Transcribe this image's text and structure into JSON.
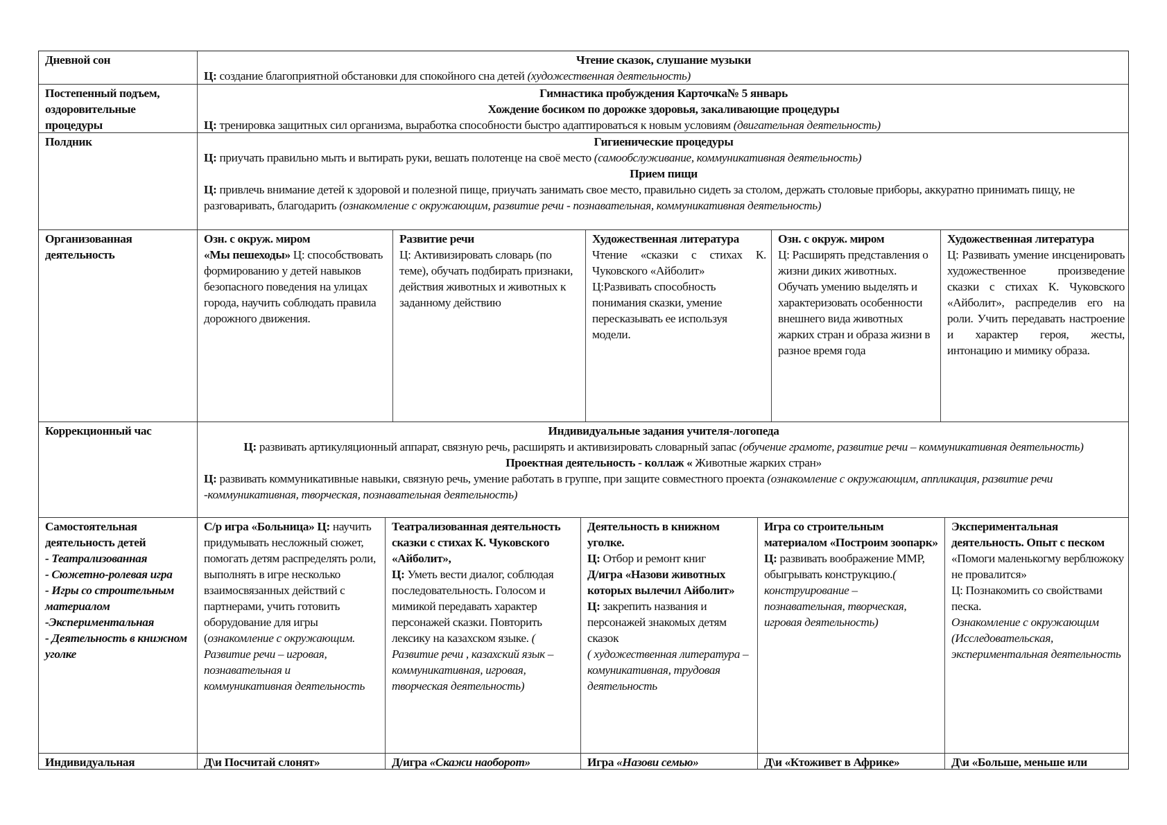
{
  "rows": [
    {
      "label": [
        [
          {
            "t": "Дневной сон",
            "s": "b"
          }
        ]
      ],
      "full": [
        {
          "align": "center",
          "segs": [
            {
              "t": "Чтение сказок, слушание музыки",
              "s": "b"
            }
          ]
        },
        {
          "align": "left",
          "segs": [
            {
              "t": "Ц:",
              "s": "b"
            },
            {
              "t": " создание благоприятной обстановки  для спокойного сна детей ",
              "s": ""
            },
            {
              "t": "(художественная  деятельность)",
              "s": "i"
            }
          ]
        }
      ]
    },
    {
      "label": [
        [
          {
            "t": "Постепенный подъем, оздоровительные процедуры",
            "s": "b"
          }
        ]
      ],
      "full": [
        {
          "align": "center",
          "segs": [
            {
              "t": "Гимнастика пробуждения Карточка№ 5 январь",
              "s": "b"
            }
          ]
        },
        {
          "align": "center",
          "segs": [
            {
              "t": "Хождение босиком по дорожке здоровья, закаливающие процедуры",
              "s": "b"
            }
          ]
        },
        {
          "align": "left",
          "segs": [
            {
              "t": "Ц:",
              "s": "b"
            },
            {
              "t": " тренировка защитных сил организма, выработка способности быстро адаптироваться к новым условиям ",
              "s": ""
            },
            {
              "t": "(двигательная деятельность)",
              "s": "i"
            }
          ]
        }
      ]
    },
    {
      "label": [
        [
          {
            "t": "Полдник",
            "s": "b"
          }
        ]
      ],
      "full": [
        {
          "align": "center",
          "segs": [
            {
              "t": "Гигиенические процедуры",
              "s": "b"
            }
          ]
        },
        {
          "align": "left",
          "segs": [
            {
              "t": "Ц:",
              "s": "b"
            },
            {
              "t": " приучать правильно мыть и вытирать руки, вешать полотенце на своё место ",
              "s": ""
            },
            {
              "t": "(самообслуживание, коммуникативная деятельность)",
              "s": "i"
            }
          ]
        },
        {
          "align": "center",
          "segs": [
            {
              "t": "Прием пищи",
              "s": "b"
            }
          ]
        },
        {
          "align": "left",
          "segs": [
            {
              "t": "Ц:",
              "s": "b"
            },
            {
              "t": " привлечь внимание детей к здоровой и полезной  пище, приучать занимать свое место, правильно сидеть за столом, держать столовые приборы, аккуратно принимать пищу, не разговаривать, благодарить ",
              "s": ""
            },
            {
              "t": "(ознакомление с окружающим, развитие речи - познавательная, коммуникативная деятельность)",
              "s": "i"
            }
          ]
        }
      ]
    },
    {
      "label": [
        [
          {
            "t": "Организованная деятельность",
            "s": "b"
          }
        ]
      ],
      "cells": [
        [
          {
            "align": "left",
            "segs": [
              {
                "t": "Озн. с окруж. миром",
                "s": "b"
              }
            ]
          },
          {
            "align": "left",
            "segs": [
              {
                "t": "«Мы пешеходы»",
                "s": "b"
              },
              {
                "t": " Ц: способствовать формированию у детей навыков безопасного поведения на улицах города, научить соблюдать правила дорожного движения.",
                "s": ""
              }
            ]
          }
        ],
        [
          {
            "align": "left",
            "segs": [
              {
                "t": "Развитие речи",
                "s": "b"
              }
            ]
          },
          {
            "align": "left",
            "segs": [
              {
                "t": "Ц: Активизировать словарь (по теме), обучать подбирать признаки, действия животных и животных к заданному действию",
                "s": ""
              }
            ]
          }
        ],
        [
          {
            "align": "left",
            "segs": [
              {
                "t": "Художественная литература",
                "s": "b"
              }
            ]
          },
          {
            "align": "justify",
            "segs": [
              {
                "t": "Чтение «сказки с стихах К. Чуковского «Айболит»",
                "s": ""
              }
            ]
          },
          {
            "align": "left",
            "segs": [
              {
                "t": "Ц:Развивать способность понимания сказки, умение пересказывать ее используя модели.",
                "s": ""
              }
            ]
          }
        ],
        [
          {
            "align": "left",
            "segs": [
              {
                "t": "Озн. с окруж. миром",
                "s": "b"
              }
            ]
          },
          {
            "align": "left",
            "segs": [
              {
                "t": "Ц: Расширять представления о жизни диких животных. Обучать умению выделять и характеризовать особенности внешнего вида животных жарких стран  и образа жизни в разное время года",
                "s": ""
              }
            ]
          }
        ],
        [
          {
            "align": "left",
            "segs": [
              {
                "t": "Художественная литература",
                "s": "b"
              }
            ]
          },
          {
            "align": "justify",
            "segs": [
              {
                "t": "Ц: Развивать умение инсценировать художественное произведение сказки с стихах К. Чуковского «Айболит», распределив его на роли. Учить передавать настроение и характер героя, жесты, интонацию и мимику образа.",
                "s": ""
              }
            ]
          }
        ]
      ]
    },
    {
      "label": [
        [
          {
            "t": "Коррекционный час",
            "s": "b"
          }
        ]
      ],
      "full": [
        {
          "align": "center",
          "segs": [
            {
              "t": "Индивидуальные задания учителя-логопеда",
              "s": "b"
            }
          ]
        },
        {
          "align": "center",
          "segs": [
            {
              "t": "Ц:",
              "s": "b"
            },
            {
              "t": " развивать артикуляционный аппарат, связную речь, расширять и активизировать словарный запас ",
              "s": ""
            },
            {
              "t": "(обучение грамоте, развитие речи – коммуникативная деятельность)",
              "s": "i"
            }
          ]
        },
        {
          "align": "center",
          "segs": [
            {
              "t": "Проектная деятельность - коллаж «",
              "s": "b"
            },
            {
              "t": " Животные жарких стран»",
              "s": ""
            }
          ]
        },
        {
          "align": "left",
          "segs": [
            {
              "t": "Ц:",
              "s": "b"
            },
            {
              "t": " развивать коммуникативные навыки, связную речь, умение работать в группе, при защите совместного проекта ",
              "s": ""
            },
            {
              "t": "(ознакомление с окружающим, аппликация, развитие речи -коммуникативная, творческая, познавательная деятельность)",
              "s": "i"
            }
          ]
        }
      ]
    },
    {
      "label": [
        [
          {
            "t": "Самостоятельная деятельность детей",
            "s": "b"
          }
        ],
        [
          {
            "t": "- Театрализованная",
            "s": "i"
          }
        ],
        [
          {
            "t": "- Сюжетно-ролевая игра",
            "s": "i"
          }
        ],
        [
          {
            "t": "- Игры со строительным материалом",
            "s": "i"
          }
        ],
        [
          {
            "t": "-Экспериментальная",
            "s": "i"
          }
        ],
        [
          {
            "t": "- Деятельность  в книжном уголке",
            "s": "i"
          }
        ]
      ],
      "cells": [
        [
          {
            "align": "left",
            "segs": [
              {
                "t": "С/р игра «Больница» Ц:",
                "s": "b"
              },
              {
                "t": " научить придумывать несложный сюжет, помогать детям распределять роли, выполнять в игре несколько взаимосвязанных действий с партнерами, учить готовить оборудование для игры (",
                "s": ""
              },
              {
                "t": "ознакомление с окружающим. Развитие речи – игровая, познавательная и коммуникативная деятельность",
                "s": "i"
              }
            ]
          }
        ],
        [
          {
            "align": "left",
            "segs": [
              {
                "t": "Театрализованная деятельность сказки с стихах К. Чуковского «Айболит»,",
                "s": "b"
              }
            ]
          },
          {
            "align": "left",
            "segs": [
              {
                "t": "Ц:",
                "s": "b"
              },
              {
                "t": " Уметь вести диалог, соблюдая последовательность. Голосом и мимикой передавать характер персонажей сказки. Повторить лексику на казахском языке.    ",
                "s": ""
              },
              {
                "t": "( Развитие речи , казахский язык – коммуникативная, игровая, творческая деятельность)",
                "s": "i"
              }
            ]
          }
        ],
        [
          {
            "align": "left",
            "segs": [
              {
                "t": "Деятельность в книжном уголке.",
                "s": "b"
              }
            ]
          },
          {
            "align": "left",
            "segs": [
              {
                "t": "Ц:",
                "s": "b"
              },
              {
                "t": " Отбор и ремонт книг",
                "s": ""
              }
            ]
          },
          {
            "align": "left",
            "segs": [
              {
                "t": "Д/игра  «Назови животных которых вылечил Айболит»",
                "s": "b"
              }
            ]
          },
          {
            "align": "left",
            "segs": [
              {
                "t": "Ц:",
                "s": "b"
              },
              {
                "t": " закрепить названия и персонажей знакомых детям сказок",
                "s": ""
              }
            ]
          },
          {
            "align": "left",
            "segs": [
              {
                "t": "( художественная литература – комуникативная, трудовая деятельность",
                "s": "i"
              }
            ]
          }
        ],
        [
          {
            "align": "left",
            "segs": [
              {
                "t": " Игра со строительным материалом «Построим зоопарк»",
                "s": "b"
              }
            ]
          },
          {
            "align": "left",
            "segs": [
              {
                "t": "Ц:",
                "s": "b"
              },
              {
                "t": " развивать воображение ММР, обыгрывать конструкцию.",
                "s": ""
              },
              {
                "t": "( конструирование – познавательная, творческая, игровая деятельность)",
                "s": "i"
              }
            ]
          }
        ],
        [
          {
            "align": "left",
            "segs": [
              {
                "t": "Экспериментальная деятельность. Опыт с песком",
                "s": "b"
              },
              {
                "t": " «Помоги маленькогму верблюжоку не провалится»",
                "s": ""
              }
            ]
          },
          {
            "align": "left",
            "segs": [
              {
                "t": "Ц:  Познакомить со свойствами песка.",
                "s": ""
              }
            ]
          },
          {
            "align": "left",
            "segs": [
              {
                "t": "Ознакомление с окружающим (Исследовательская, экспериментальная деятельность",
                "s": "i"
              }
            ]
          }
        ]
      ]
    },
    {
      "label": [
        [
          {
            "t": "Индивидуальная",
            "s": "b"
          }
        ]
      ],
      "cells": [
        [
          {
            "align": "left",
            "segs": [
              {
                "t": "Д\\и Посчитай слонят»",
                "s": "b"
              }
            ]
          }
        ],
        [
          {
            "align": "left",
            "segs": [
              {
                "t": "Д/игра ",
                "s": "b"
              },
              {
                "t": "«Скажи наоборот»",
                "s": "bi"
              }
            ]
          }
        ],
        [
          {
            "align": "left",
            "segs": [
              {
                "t": "Игра ",
                "s": "b"
              },
              {
                "t": "«Назови семью»",
                "s": "bi"
              }
            ]
          }
        ],
        [
          {
            "align": "left",
            "segs": [
              {
                "t": "Д\\и «Ктоживет в Африке»",
                "s": "b"
              }
            ]
          }
        ],
        [
          {
            "align": "left",
            "segs": [
              {
                "t": "Д\\и «Больше, меньше или",
                "s": "b"
              }
            ]
          }
        ]
      ]
    }
  ]
}
